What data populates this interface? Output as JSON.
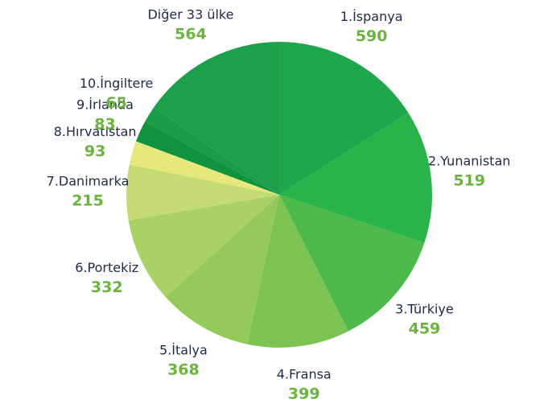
{
  "chart_data": {
    "type": "pie",
    "categories": [
      "1.İspanya",
      "2.Yunanistan",
      "3.Türkiye",
      "4.Fransa",
      "5.İtalya",
      "6.Portekiz",
      "7.Danimarka",
      "8.Hırvatistan",
      "9.İrlanda",
      "10.İngiltere",
      "Diğer 33 ülke"
    ],
    "values": [
      590,
      519,
      459,
      399,
      368,
      332,
      215,
      93,
      83,
      65,
      564
    ],
    "colors": [
      "#1fa84b",
      "#2bb34b",
      "#4dba4b",
      "#7cc353",
      "#94ca5b",
      "#aad166",
      "#c5dc75",
      "#e7e87c",
      "#10923e",
      "#1a9c46",
      "#1ca04a"
    ]
  }
}
